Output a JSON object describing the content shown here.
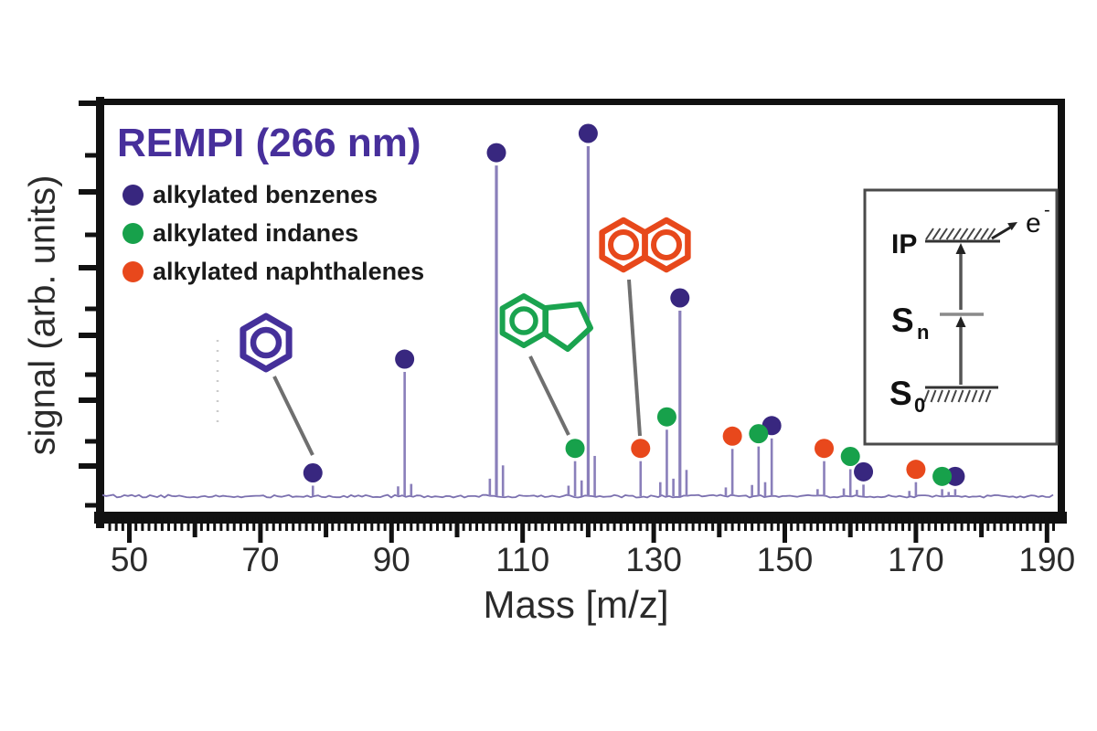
{
  "title": {
    "text": "REMPI (266 nm)",
    "color": "#472f9b"
  },
  "legend": [
    {
      "label": "alkylated benzenes",
      "color": "#38277f",
      "series": "benzenes"
    },
    {
      "label": "alkylated indanes",
      "color": "#17a14b",
      "series": "indanes"
    },
    {
      "label": "alkylated naphthalenes",
      "color": "#e8481c",
      "series": "naphthalenes"
    }
  ],
  "axes": {
    "x_label": "Mass [m/z]",
    "y_label": "signal (arb. units)",
    "x_ticks": [
      50,
      70,
      90,
      110,
      130,
      150,
      170,
      190
    ],
    "x_minor_step": 1,
    "x_medium_step": 10,
    "grid": false
  },
  "chart_data": {
    "type": "line",
    "subtype": "mass-spectrum-stick",
    "title": "REMPI (266 nm)",
    "xlabel": "Mass [m/z]",
    "ylabel": "signal (arb. units)",
    "xlim": [
      46,
      192
    ],
    "ylim_relative": [
      0,
      1.05
    ],
    "legend_position": "top-left",
    "series": [
      {
        "name": "alkylated benzenes",
        "color": "#38277f",
        "marker": true,
        "points": [
          {
            "mz": 78,
            "h": 0.03
          },
          {
            "mz": 92,
            "h": 0.355
          },
          {
            "mz": 106,
            "h": 0.945
          },
          {
            "mz": 120,
            "h": 1.0
          },
          {
            "mz": 134,
            "h": 0.53
          },
          {
            "mz": 148,
            "h": 0.165
          },
          {
            "mz": 162,
            "h": 0.033
          },
          {
            "mz": 176,
            "h": 0.02
          }
        ]
      },
      {
        "name": "alkylated indanes",
        "color": "#17a14b",
        "marker": true,
        "points": [
          {
            "mz": 118,
            "h": 0.1
          },
          {
            "mz": 132,
            "h": 0.19
          },
          {
            "mz": 146,
            "h": 0.142
          },
          {
            "mz": 160,
            "h": 0.077
          },
          {
            "mz": 174,
            "h": 0.02
          }
        ]
      },
      {
        "name": "alkylated naphthalenes",
        "color": "#e8481c",
        "marker": true,
        "points": [
          {
            "mz": 128,
            "h": 0.1
          },
          {
            "mz": 142,
            "h": 0.135
          },
          {
            "mz": 156,
            "h": 0.1
          },
          {
            "mz": 170,
            "h": 0.04
          }
        ]
      },
      {
        "name": "minor unassigned peaks",
        "color": "#8a7fba",
        "marker": false,
        "points": [
          {
            "mz": 91,
            "h": 0.028
          },
          {
            "mz": 93,
            "h": 0.035
          },
          {
            "mz": 105,
            "h": 0.05
          },
          {
            "mz": 107,
            "h": 0.088
          },
          {
            "mz": 117,
            "h": 0.03
          },
          {
            "mz": 119,
            "h": 0.045
          },
          {
            "mz": 121,
            "h": 0.115
          },
          {
            "mz": 131,
            "h": 0.04
          },
          {
            "mz": 133,
            "h": 0.05
          },
          {
            "mz": 135,
            "h": 0.075
          },
          {
            "mz": 141,
            "h": 0.025
          },
          {
            "mz": 145,
            "h": 0.032
          },
          {
            "mz": 147,
            "h": 0.04
          },
          {
            "mz": 155,
            "h": 0.02
          },
          {
            "mz": 159,
            "h": 0.022
          },
          {
            "mz": 161,
            "h": 0.018
          },
          {
            "mz": 169,
            "h": 0.015
          },
          {
            "mz": 175,
            "h": 0.012
          }
        ]
      }
    ],
    "annotations": {
      "structures": [
        {
          "name": "benzene",
          "color": "#45309a",
          "points_to_mz": 78
        },
        {
          "name": "indane",
          "color": "#1aa34f",
          "points_to_mz": 118
        },
        {
          "name": "naphthalene",
          "color": "#e7481b",
          "points_to_mz": 128
        }
      ]
    }
  },
  "inset": {
    "ip_label": "IP",
    "sn_label": "S",
    "sn_sub": "n",
    "s0_label": "S",
    "s0_sub": "0",
    "electron_label": "e",
    "electron_sup": "-"
  }
}
